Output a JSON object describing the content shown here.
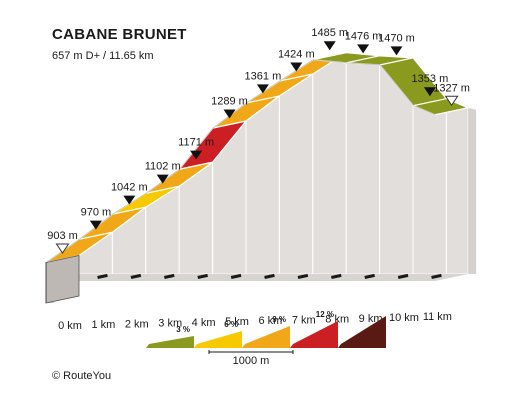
{
  "title": "CABANE BRUNET",
  "subtitle": "657 m D+ / 11.65 km",
  "copyright": "© RouteYou",
  "colors": {
    "3": "#8a9a1e",
    "6": "#f7c900",
    "9": "#f0a818",
    "12": "#cc1f24",
    "15": "#5a1a14"
  },
  "legend": {
    "items": [
      {
        "label": "3 %",
        "color_key": "3"
      },
      {
        "label": "6 %",
        "color_key": "6"
      },
      {
        "label": "9 %",
        "color_key": "9"
      },
      {
        "label": "12 %",
        "color_key": "12"
      },
      {
        "label": "",
        "color_key": "15"
      }
    ],
    "scale_label": "1000 m"
  },
  "chart_data": {
    "type": "area",
    "title": "CABANE BRUNET",
    "subtitle": "657 m D+ / 11.65 km",
    "xlabel": "",
    "ylabel": "",
    "x_unit": "km",
    "y_unit": "m",
    "x_ticks": [
      "0 km",
      "1 km",
      "2 km",
      "3 km",
      "4 km",
      "5 km",
      "6 km",
      "7 km",
      "8 km",
      "9 km",
      "10 km",
      "11 km"
    ],
    "points": [
      {
        "km": 0,
        "elev": 903,
        "label": "903 m",
        "marker": "start"
      },
      {
        "km": 1,
        "elev": 970,
        "label": "970 m"
      },
      {
        "km": 2,
        "elev": 1042,
        "label": "1042 m"
      },
      {
        "km": 3,
        "elev": 1102,
        "label": "1102 m"
      },
      {
        "km": 4,
        "elev": 1171,
        "label": "1171 m"
      },
      {
        "km": 5,
        "elev": 1289,
        "label": "1289 m"
      },
      {
        "km": 6,
        "elev": 1361,
        "label": "1361 m"
      },
      {
        "km": 7,
        "elev": 1424,
        "label": "1424 m"
      },
      {
        "km": 8,
        "elev": 1485,
        "label": "1485 m"
      },
      {
        "km": 9,
        "elev": 1476,
        "label": "1476 m"
      },
      {
        "km": 10,
        "elev": 1470,
        "label": "1470 m"
      },
      {
        "km": 11,
        "elev": 1353,
        "label": "1353 m"
      },
      {
        "km": 11.65,
        "elev": 1327,
        "label": "1327 m",
        "marker": "end"
      }
    ],
    "segment_grade_classes": [
      "9",
      "9",
      "6",
      "9",
      "12",
      "9",
      "9",
      "9",
      "3",
      "3",
      "3",
      "3"
    ]
  }
}
